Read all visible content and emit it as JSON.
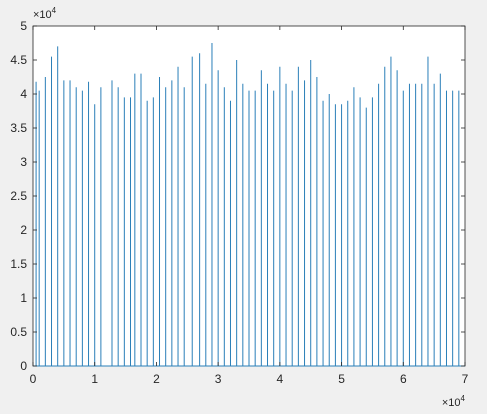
{
  "window": {
    "background": "#f0f0f0"
  },
  "chart_data": {
    "type": "bar",
    "style": "stem",
    "xlim": [
      0,
      70000
    ],
    "ylim": [
      0,
      50000
    ],
    "x_ticks": [
      0,
      1,
      2,
      3,
      4,
      5,
      6,
      7
    ],
    "y_ticks": [
      0,
      0.5,
      1,
      1.5,
      2,
      2.5,
      3,
      3.5,
      4,
      4.5,
      5
    ],
    "x_exponent_label": "×10",
    "x_exponent_power": "4",
    "y_exponent_label": "×10",
    "y_exponent_power": "4",
    "grid": false,
    "colors": {
      "series": "#2a7fb8",
      "axes": "#262626",
      "plot_background": "#ffffff"
    },
    "x": [
      500,
      1000,
      2000,
      3000,
      4000,
      5000,
      6000,
      7000,
      8000,
      9000,
      10000,
      11000,
      12800,
      13800,
      14800,
      15800,
      16500,
      17500,
      18500,
      19500,
      20500,
      21500,
      22500,
      23500,
      24500,
      25800,
      27000,
      28000,
      29000,
      30000,
      31000,
      32000,
      33000,
      34000,
      35000,
      36000,
      37000,
      38000,
      39000,
      40000,
      41000,
      42000,
      43000,
      44000,
      45000,
      46000,
      47000,
      48000,
      49000,
      50000,
      51000,
      52000,
      53000,
      54000,
      55000,
      56000,
      57000,
      58000,
      59000,
      60000,
      61000,
      62000,
      63000,
      64000,
      65000,
      66000,
      67000,
      68000,
      69000
    ],
    "y": [
      41800,
      40500,
      42500,
      45500,
      47000,
      42000,
      42000,
      41000,
      40500,
      41800,
      38500,
      41000,
      42000,
      41000,
      39500,
      39500,
      43000,
      43000,
      39000,
      39500,
      42500,
      41000,
      42000,
      44000,
      41000,
      45500,
      46000,
      41500,
      47500,
      43500,
      41000,
      39000,
      45000,
      41500,
      40500,
      40500,
      43500,
      41500,
      40500,
      44000,
      41500,
      40500,
      44000,
      42000,
      45000,
      42500,
      39000,
      40000,
      38500,
      38500,
      39000,
      41000,
      39500,
      38000,
      39500,
      41500,
      44000,
      45500,
      43500,
      40500,
      41500,
      41500,
      41500,
      45500,
      41500,
      43000,
      40500,
      40500,
      40500
    ]
  }
}
